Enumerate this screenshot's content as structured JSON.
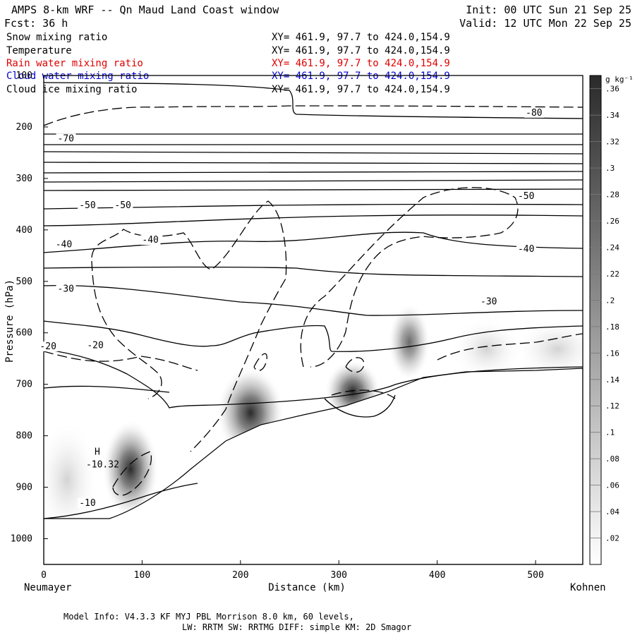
{
  "header": {
    "title": "AMPS 8-km WRF -- Qn Maud Land Coast window",
    "fcst": "Fcst:   36 h",
    "init": "Init: 00 UTC Sun 21 Sep 25",
    "valid": "Valid: 12 UTC Mon 22 Sep 25"
  },
  "legend": [
    {
      "name": "Snow mixing ratio",
      "xy": "XY= 461.9, 97.7 to 424.0,154.9",
      "color": "#000000"
    },
    {
      "name": "Temperature",
      "xy": "XY= 461.9, 97.7 to 424.0,154.9",
      "color": "#000000"
    },
    {
      "name": "Rain water mixing ratio",
      "xy": "XY= 461.9, 97.7 to 424.0,154.9",
      "color": "#e00000"
    },
    {
      "name": "Cloud water mixing ratio",
      "xy": "XY= 461.9, 97.7 to 424.0,154.9",
      "color": "#0000cc"
    },
    {
      "name": "Cloud ice mixing ratio",
      "xy": "XY= 461.9, 97.7 to 424.0,154.9",
      "color": "#000000"
    }
  ],
  "axes": {
    "ylabel": "Pressure (hPa)",
    "xlabel": "Distance (km)",
    "left_location": "Neumayer",
    "right_location": "Kohnen"
  },
  "colorbar": {
    "unit": "g kg⁻¹",
    "ticks": [
      ".36",
      ".34",
      ".32",
      ".3",
      ".28",
      ".26",
      ".24",
      ".22",
      ".2",
      ".18",
      ".16",
      ".14",
      ".12",
      ".1",
      ".08",
      ".06",
      ".04",
      ".02"
    ],
    "tick_values": [
      0.36,
      0.34,
      0.32,
      0.3,
      0.28,
      0.26,
      0.24,
      0.22,
      0.2,
      0.18,
      0.16,
      0.14,
      0.12,
      0.1,
      0.08,
      0.06,
      0.04,
      0.02
    ],
    "range": [
      0.0,
      0.37
    ]
  },
  "footer": {
    "line1": "Model Info: V4.3.3   KF      MYJ PBL  Morrison            8.0 km,  60 levels,",
    "line2": "LW: RRTM SW: RRTMG   DIFF: simple KM: 2D Smagor"
  },
  "chart_data": {
    "type": "cross-section",
    "title": "AMPS 8-km WRF -- Qn Maud Land Coast window",
    "xlabel": "Distance (km)",
    "ylabel": "Pressure (hPa)",
    "xlim": [
      0,
      548
    ],
    "ylim": [
      1050,
      100
    ],
    "x_ticks": [
      0,
      100,
      200,
      300,
      400,
      500
    ],
    "x_tick_labels": [
      "0",
      "100",
      "200",
      "300",
      "400",
      "500"
    ],
    "y_ticks": [
      100,
      200,
      300,
      400,
      500,
      600,
      700,
      800,
      900,
      1000
    ],
    "y_tick_labels": [
      "100",
      "200",
      "300",
      "400",
      "500",
      "600",
      "700",
      "800",
      "900",
      "1000"
    ],
    "temperature_labels": [
      {
        "text": "-80",
        "x": 490,
        "p": 178
      },
      {
        "text": "-70",
        "x": 14,
        "p": 228
      },
      {
        "text": "-50",
        "x": 36,
        "p": 358
      },
      {
        "text": "-50",
        "x": 72,
        "p": 358
      },
      {
        "text": "-50",
        "x": 482,
        "p": 340
      },
      {
        "text": "-40",
        "x": 12,
        "p": 434
      },
      {
        "text": "-40",
        "x": 100,
        "p": 425
      },
      {
        "text": "-40",
        "x": 482,
        "p": 443
      },
      {
        "text": "-30",
        "x": 14,
        "p": 520
      },
      {
        "text": "-30",
        "x": 444,
        "p": 545
      },
      {
        "text": "-20",
        "x": -4,
        "p": 632
      },
      {
        "text": "-20",
        "x": 44,
        "p": 630
      },
      {
        "text": "-10",
        "x": 36,
        "p": 936
      }
    ],
    "extremum": {
      "label": "H",
      "value": "-10.32",
      "x": 43,
      "p": 853
    }
  }
}
